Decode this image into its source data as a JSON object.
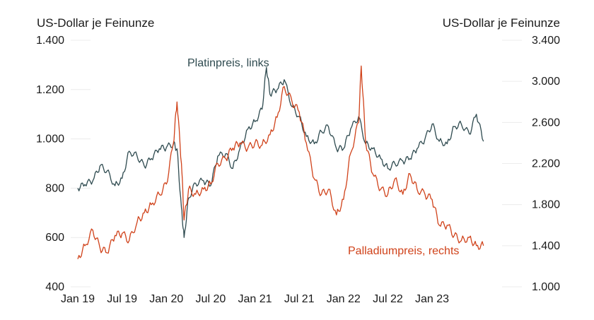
{
  "chart_data": {
    "type": "line",
    "left_axis_title": "US-Dollar je Feinunze",
    "right_axis_title": "US-Dollar je Feinunze",
    "left_ylim": [
      400,
      1400
    ],
    "left_ticks": [
      "1.400",
      "1.200",
      "1.000",
      "800",
      "600",
      "400"
    ],
    "right_ylim": [
      1000,
      3400
    ],
    "right_ticks": [
      "3.400",
      "3.000",
      "2.600",
      "2.200",
      "1.800",
      "1.400",
      "1.000"
    ],
    "x_ticks": [
      "Jan 19",
      "Jul 19",
      "Jan 20",
      "Jul 20",
      "Jan 21",
      "Jul 21",
      "Jan 22",
      "Jul 22",
      "Jan 23"
    ],
    "grid": true,
    "series": [
      {
        "name": "Platinpreis, links",
        "axis": "left",
        "color": "#2e4a4f",
        "x": [
          2019.0,
          2019.08,
          2019.17,
          2019.25,
          2019.33,
          2019.42,
          2019.5,
          2019.58,
          2019.67,
          2019.75,
          2019.83,
          2019.92,
          2020.0,
          2020.08,
          2020.12,
          2020.17,
          2020.2,
          2020.25,
          2020.33,
          2020.42,
          2020.5,
          2020.58,
          2020.67,
          2020.75,
          2020.83,
          2020.92,
          2021.0,
          2021.08,
          2021.13,
          2021.17,
          2021.25,
          2021.33,
          2021.42,
          2021.5,
          2021.58,
          2021.67,
          2021.75,
          2021.83,
          2021.92,
          2022.0,
          2022.08,
          2022.17,
          2022.25,
          2022.33,
          2022.42,
          2022.5,
          2022.58,
          2022.67,
          2022.75,
          2022.83,
          2022.92,
          2023.0,
          2023.08,
          2023.17,
          2023.25,
          2023.33,
          2023.42,
          2023.5,
          2023.58
        ],
        "values": [
          800,
          815,
          830,
          890,
          870,
          810,
          840,
          950,
          930,
          890,
          920,
          960,
          965,
          980,
          960,
          720,
          600,
          760,
          820,
          830,
          810,
          930,
          940,
          880,
          960,
          1040,
          1070,
          1120,
          1290,
          1180,
          1200,
          1240,
          1130,
          1090,
          1010,
          980,
          1030,
          1050,
          960,
          960,
          1040,
          1090,
          980,
          960,
          920,
          880,
          900,
          910,
          920,
          960,
          1000,
          1060,
          990,
          980,
          1050,
          1060,
          1020,
          1100,
          990
        ]
      },
      {
        "name": "Palladiumpreis, rechts",
        "axis": "right",
        "color": "#d0421a",
        "x": [
          2019.0,
          2019.08,
          2019.17,
          2019.25,
          2019.33,
          2019.42,
          2019.5,
          2019.58,
          2019.67,
          2019.75,
          2019.83,
          2019.92,
          2020.0,
          2020.08,
          2020.12,
          2020.17,
          2020.2,
          2020.25,
          2020.33,
          2020.42,
          2020.5,
          2020.58,
          2020.67,
          2020.75,
          2020.83,
          2020.92,
          2021.0,
          2021.08,
          2021.17,
          2021.25,
          2021.33,
          2021.42,
          2021.5,
          2021.58,
          2021.67,
          2021.75,
          2021.83,
          2021.92,
          2022.0,
          2022.08,
          2022.17,
          2022.2,
          2022.25,
          2022.33,
          2022.42,
          2022.5,
          2022.58,
          2022.67,
          2022.75,
          2022.83,
          2022.92,
          2023.0,
          2023.08,
          2023.17,
          2023.25,
          2023.33,
          2023.42,
          2023.5,
          2023.58
        ],
        "values": [
          1270,
          1400,
          1550,
          1380,
          1330,
          1500,
          1520,
          1450,
          1630,
          1720,
          1800,
          1900,
          2000,
          2400,
          2800,
          2200,
          1650,
          1950,
          1900,
          1950,
          2000,
          2200,
          2250,
          2350,
          2400,
          2350,
          2400,
          2380,
          2480,
          2650,
          2950,
          2800,
          2700,
          2400,
          2050,
          1900,
          1950,
          1700,
          1850,
          2300,
          2600,
          3150,
          2400,
          2100,
          1950,
          1900,
          2050,
          1900,
          2100,
          1950,
          1900,
          1850,
          1600,
          1600,
          1500,
          1450,
          1480,
          1400,
          1400
        ]
      }
    ],
    "annotations": [
      {
        "text": "Platinpreis, links",
        "color": "#2e4a4f"
      },
      {
        "text": "Palladiumpreis, rechts",
        "color": "#d0421a"
      }
    ]
  }
}
